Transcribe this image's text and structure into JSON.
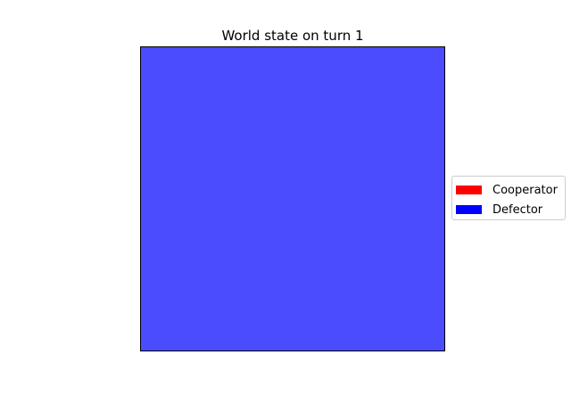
{
  "chart_data": {
    "type": "heatmap",
    "title": "World state on turn 1",
    "xlabel": "",
    "ylabel": "",
    "grid": false,
    "axes_ticks": false,
    "legend_placement": "right",
    "categories": [
      "Cooperator",
      "Defector"
    ],
    "colors": {
      "Cooperator": "#ff0000",
      "Defector": "#0000ff"
    },
    "cell_alpha": 0.7,
    "grid_shape": [
      1,
      1
    ],
    "cells": [
      [
        "Defector"
      ]
    ],
    "legend": [
      {
        "label": "Cooperator",
        "color": "#ff0000"
      },
      {
        "label": "Defector",
        "color": "#0000ff"
      }
    ]
  }
}
